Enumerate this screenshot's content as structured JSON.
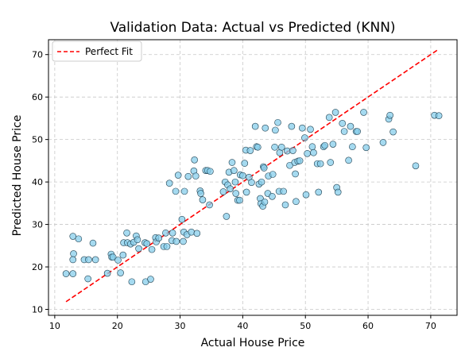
{
  "chart_data": {
    "type": "scatter",
    "title": "Validation Data: Actual vs Predicted (KNN)",
    "xlabel": "Actual House Price",
    "ylabel": "Predicted House Price",
    "xlim": [
      9.0,
      74.2
    ],
    "ylim": [
      8.6,
      73.5
    ],
    "xticks": [
      10,
      20,
      30,
      40,
      50,
      60,
      70
    ],
    "yticks": [
      10,
      20,
      30,
      40,
      50,
      60,
      70
    ],
    "grid": true,
    "legend": {
      "position": "top-left",
      "entries": [
        "Perfect Fit"
      ]
    },
    "colors": {
      "point_fill": "#87ceeb",
      "point_edge": "#1f3f4f",
      "fit_line": "#ff0000",
      "grid": "#c8c8c8"
    },
    "reference_line": {
      "name": "Perfect Fit",
      "from": [
        11.8,
        11.8
      ],
      "to": [
        71.0,
        71.0
      ],
      "style": "dashed"
    },
    "points": [
      [
        11.8,
        18.4
      ],
      [
        12.9,
        18.4
      ],
      [
        12.9,
        27.2
      ],
      [
        13.0,
        23.1
      ],
      [
        12.9,
        21.7
      ],
      [
        13.8,
        26.6
      ],
      [
        14.7,
        21.7
      ],
      [
        15.3,
        17.2
      ],
      [
        15.4,
        21.7
      ],
      [
        16.1,
        25.6
      ],
      [
        16.5,
        21.7
      ],
      [
        18.4,
        18.5
      ],
      [
        19.0,
        23.0
      ],
      [
        19.1,
        22.3
      ],
      [
        19.3,
        22.3
      ],
      [
        20.1,
        21.6
      ],
      [
        20.5,
        18.6
      ],
      [
        20.9,
        22.8
      ],
      [
        21.0,
        25.7
      ],
      [
        21.5,
        28.0
      ],
      [
        21.6,
        25.7
      ],
      [
        22.1,
        25.4
      ],
      [
        22.3,
        16.5
      ],
      [
        22.6,
        25.8
      ],
      [
        23.0,
        27.3
      ],
      [
        23.2,
        26.4
      ],
      [
        23.4,
        24.3
      ],
      [
        24.4,
        25.7
      ],
      [
        24.5,
        16.5
      ],
      [
        24.7,
        25.5
      ],
      [
        25.3,
        17.1
      ],
      [
        25.5,
        24.1
      ],
      [
        26.1,
        26.9
      ],
      [
        26.2,
        25.9
      ],
      [
        26.6,
        26.8
      ],
      [
        27.4,
        24.8
      ],
      [
        27.7,
        28.0
      ],
      [
        27.9,
        24.8
      ],
      [
        28.3,
        39.7
      ],
      [
        28.7,
        26.2
      ],
      [
        28.8,
        28.0
      ],
      [
        29.3,
        37.8
      ],
      [
        29.4,
        26.0
      ],
      [
        29.7,
        41.6
      ],
      [
        30.3,
        31.2
      ],
      [
        30.5,
        26.0
      ],
      [
        30.6,
        28.2
      ],
      [
        30.7,
        37.8
      ],
      [
        31.1,
        27.6
      ],
      [
        31.3,
        41.3
      ],
      [
        31.8,
        28.2
      ],
      [
        32.2,
        42.6
      ],
      [
        32.3,
        45.2
      ],
      [
        32.5,
        41.4
      ],
      [
        32.7,
        27.9
      ],
      [
        33.2,
        37.9
      ],
      [
        33.3,
        37.3
      ],
      [
        33.6,
        35.8
      ],
      [
        34.1,
        42.7
      ],
      [
        34.4,
        42.7
      ],
      [
        34.7,
        34.6
      ],
      [
        34.8,
        42.5
      ],
      [
        36.9,
        37.7
      ],
      [
        37.2,
        40.0
      ],
      [
        37.4,
        31.9
      ],
      [
        37.6,
        39.3
      ],
      [
        37.8,
        42.3
      ],
      [
        38.0,
        38.4
      ],
      [
        38.3,
        44.6
      ],
      [
        38.6,
        42.7
      ],
      [
        38.8,
        40.0
      ],
      [
        38.9,
        37.3
      ],
      [
        39.2,
        35.7
      ],
      [
        39.5,
        35.7
      ],
      [
        39.6,
        41.7
      ],
      [
        40.0,
        41.5
      ],
      [
        40.3,
        44.4
      ],
      [
        40.5,
        47.5
      ],
      [
        40.6,
        37.6
      ],
      [
        41.0,
        41.1
      ],
      [
        41.2,
        47.4
      ],
      [
        41.4,
        39.9
      ],
      [
        42.0,
        53.1
      ],
      [
        42.2,
        48.3
      ],
      [
        42.4,
        48.2
      ],
      [
        42.6,
        39.5
      ],
      [
        42.8,
        36.1
      ],
      [
        42.9,
        34.9
      ],
      [
        43.0,
        40.0
      ],
      [
        43.2,
        34.3
      ],
      [
        43.3,
        43.6
      ],
      [
        43.4,
        43.3
      ],
      [
        43.5,
        35.3
      ],
      [
        43.6,
        52.7
      ],
      [
        44.0,
        37.3
      ],
      [
        44.1,
        41.4
      ],
      [
        44.7,
        36.6
      ],
      [
        44.8,
        41.8
      ],
      [
        45.1,
        48.2
      ],
      [
        45.2,
        52.2
      ],
      [
        45.6,
        54.0
      ],
      [
        45.8,
        37.8
      ],
      [
        45.9,
        46.9
      ],
      [
        46.2,
        48.2
      ],
      [
        46.5,
        37.8
      ],
      [
        46.8,
        34.6
      ],
      [
        47.1,
        47.3
      ],
      [
        47.5,
        43.9
      ],
      [
        47.8,
        53.1
      ],
      [
        48.0,
        47.4
      ],
      [
        48.3,
        44.6
      ],
      [
        48.4,
        41.9
      ],
      [
        48.5,
        35.4
      ],
      [
        48.8,
        44.9
      ],
      [
        49.1,
        45.0
      ],
      [
        49.5,
        52.7
      ],
      [
        49.9,
        50.4
      ],
      [
        50.1,
        37.0
      ],
      [
        50.3,
        46.7
      ],
      [
        50.8,
        52.4
      ],
      [
        51.1,
        48.3
      ],
      [
        51.3,
        46.9
      ],
      [
        51.9,
        44.3
      ],
      [
        52.1,
        37.6
      ],
      [
        52.4,
        44.3
      ],
      [
        52.9,
        48.3
      ],
      [
        53.1,
        48.6
      ],
      [
        53.8,
        55.2
      ],
      [
        54.0,
        44.6
      ],
      [
        54.4,
        48.9
      ],
      [
        54.8,
        56.4
      ],
      [
        55.0,
        38.7
      ],
      [
        55.2,
        37.6
      ],
      [
        55.9,
        53.8
      ],
      [
        56.2,
        51.9
      ],
      [
        56.9,
        45.1
      ],
      [
        57.2,
        53.1
      ],
      [
        57.5,
        48.3
      ],
      [
        58.1,
        51.9
      ],
      [
        58.3,
        51.9
      ],
      [
        59.3,
        56.4
      ],
      [
        59.7,
        48.1
      ],
      [
        62.4,
        49.3
      ],
      [
        63.3,
        54.8
      ],
      [
        63.5,
        55.7
      ],
      [
        64.0,
        51.8
      ],
      [
        67.6,
        43.8
      ],
      [
        70.6,
        55.7
      ],
      [
        71.3,
        55.6
      ]
    ]
  }
}
